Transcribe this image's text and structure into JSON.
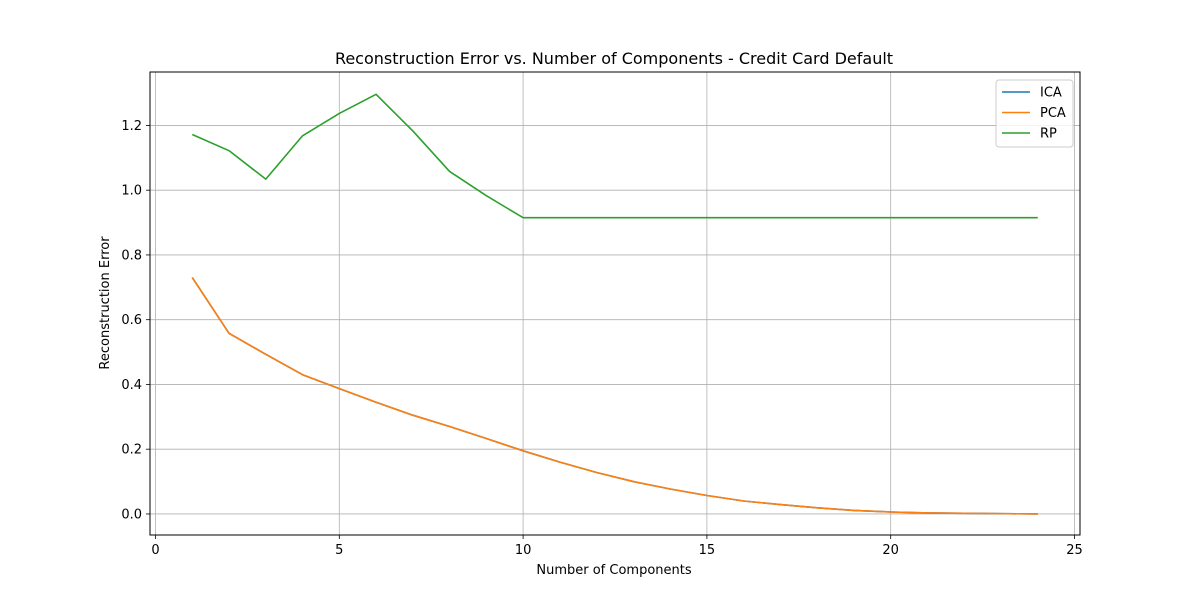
{
  "chart_data": {
    "type": "line",
    "title": "Reconstruction Error vs. Number of Components - Credit Card Default",
    "xlabel": "Number of Components",
    "ylabel": "Reconstruction Error",
    "xlim": [
      -0.15,
      25.15
    ],
    "ylim": [
      -0.065,
      1.365
    ],
    "xticks": [
      0,
      5,
      10,
      15,
      20,
      25
    ],
    "yticks": [
      0.0,
      0.2,
      0.4,
      0.6,
      0.8,
      1.0,
      1.2
    ],
    "xtick_labels": [
      "0",
      "5",
      "10",
      "15",
      "20",
      "25"
    ],
    "ytick_labels": [
      "0.0",
      "0.2",
      "0.4",
      "0.6",
      "0.8",
      "1.0",
      "1.2"
    ],
    "grid": true,
    "legend_position": "top-right",
    "x": [
      1,
      2,
      3,
      4,
      5,
      6,
      7,
      8,
      9,
      10,
      11,
      12,
      13,
      14,
      15,
      16,
      17,
      18,
      19,
      20,
      21,
      22,
      23,
      24
    ],
    "series": [
      {
        "name": "ICA",
        "color": "#1f77b4",
        "values": [
          0.73,
          0.558,
          0.493,
          0.43,
          0.387,
          0.345,
          0.305,
          0.27,
          0.233,
          0.195,
          0.16,
          0.128,
          0.1,
          0.077,
          0.057,
          0.04,
          0.029,
          0.019,
          0.011,
          0.006,
          0.003,
          0.002,
          0.001,
          0.0
        ]
      },
      {
        "name": "PCA",
        "color": "#ff7f0e",
        "values": [
          0.73,
          0.558,
          0.493,
          0.43,
          0.387,
          0.345,
          0.305,
          0.27,
          0.233,
          0.195,
          0.16,
          0.128,
          0.1,
          0.077,
          0.057,
          0.04,
          0.029,
          0.019,
          0.011,
          0.006,
          0.003,
          0.002,
          0.001,
          0.0
        ]
      },
      {
        "name": "RP",
        "color": "#2ca02c",
        "values": [
          1.172,
          1.122,
          1.034,
          1.168,
          1.237,
          1.296,
          1.183,
          1.058,
          0.983,
          0.915,
          0.915,
          0.915,
          0.915,
          0.915,
          0.915,
          0.915,
          0.915,
          0.915,
          0.915,
          0.915,
          0.915,
          0.915,
          0.915,
          0.915
        ]
      }
    ]
  }
}
